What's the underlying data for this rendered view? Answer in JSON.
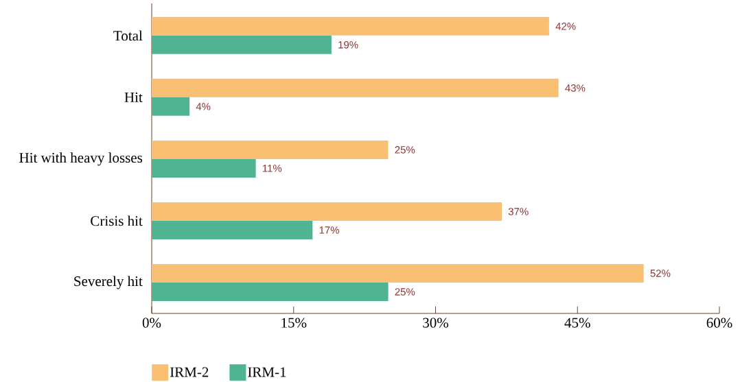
{
  "chart_data": {
    "type": "bar",
    "orientation": "horizontal",
    "categories": [
      "Total",
      "Hit",
      "Hit with heavy losses",
      "Crisis hit",
      "Severely hit"
    ],
    "series": [
      {
        "name": "IRM-2",
        "color": "#f9c074",
        "values": [
          42,
          43,
          25,
          37,
          52
        ],
        "value_labels": [
          "42%",
          "43%",
          "25%",
          "37%",
          "52%"
        ]
      },
      {
        "name": "IRM-1",
        "color": "#50b493",
        "values": [
          19,
          4,
          11,
          17,
          25
        ],
        "value_labels": [
          "19%",
          "4%",
          "11%",
          "17%",
          "25%"
        ]
      }
    ],
    "xlim": [
      0,
      60
    ],
    "xticks": [
      {
        "value": 0,
        "label": "0%"
      },
      {
        "value": 15,
        "label": "15%"
      },
      {
        "value": 30,
        "label": "30%"
      },
      {
        "value": 45,
        "label": "45%"
      },
      {
        "value": 60,
        "label": "60%"
      }
    ],
    "legend": "bottom left"
  }
}
